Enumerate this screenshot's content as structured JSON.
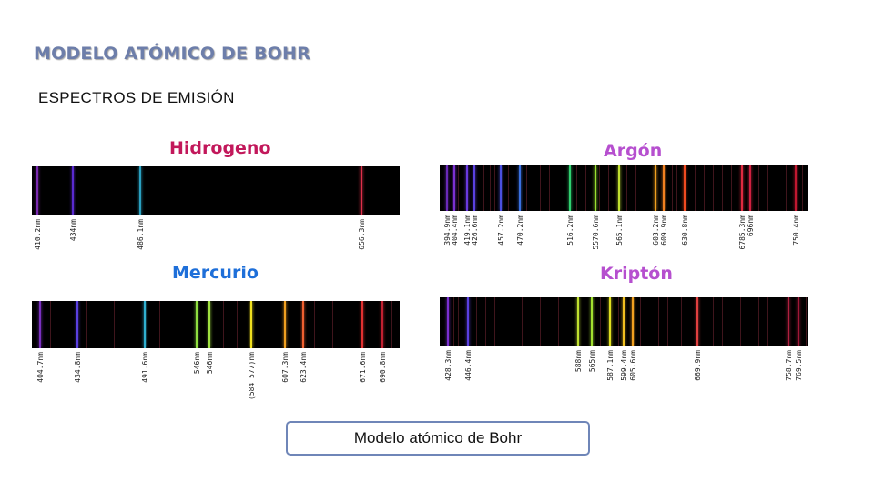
{
  "header": {
    "title": "MODELO ATÓMICO DE BOHR",
    "subtitle": "ESPECTROS DE EMISIÓN"
  },
  "panels": [
    {
      "name": "Hidrogeno",
      "color": "#c2185b",
      "lines": [
        {
          "label": "410.2nm",
          "color": "#7a2ab0"
        },
        {
          "label": "434nm",
          "color": "#5a2ad0"
        },
        {
          "label": "486.1nm",
          "color": "#2aa0c0"
        },
        {
          "label": "656.3nm",
          "color": "#e0304a"
        }
      ]
    },
    {
      "name": "Argón",
      "color": "#b64fcf",
      "lines": [
        {
          "label": "394.9nm",
          "color": "#6a2ab8"
        },
        {
          "label": "404.4nm",
          "color": "#7a30d0"
        },
        {
          "label": "419.1nm",
          "color": "#6a3ae0"
        },
        {
          "label": "426.6nm",
          "color": "#5a40e0"
        },
        {
          "label": "457.2nm",
          "color": "#4a50e0"
        },
        {
          "label": "470.2nm",
          "color": "#3a70e0"
        },
        {
          "label": "516.2nm",
          "color": "#30d070"
        },
        {
          "label": "5570.6nm",
          "color": "#9adf30"
        },
        {
          "label": "565.1nm",
          "color": "#c0e030"
        },
        {
          "label": "603.2nm",
          "color": "#f0a020"
        },
        {
          "label": "609.9nm",
          "color": "#f08020"
        },
        {
          "label": "630.8nm",
          "color": "#f04a20"
        },
        {
          "label": "6785.3nm",
          "color": "#e02a40"
        },
        {
          "label": "696nm",
          "color": "#d02040"
        },
        {
          "label": "750.4nm",
          "color": "#c01830"
        }
      ]
    },
    {
      "name": "Mercurio",
      "color": "#1e6fd9",
      "lines": [
        {
          "label": "404.7nm",
          "color": "#7a30c0"
        },
        {
          "label": "434.8nm",
          "color": "#5a40e0"
        },
        {
          "label": "491.6nm",
          "color": "#30b0d0"
        },
        {
          "label": "546nm",
          "color": "#90e040"
        },
        {
          "label": "546nm",
          "color": "#a0e040"
        },
        {
          "label": "(584 577)nm",
          "color": "#f0e020"
        },
        {
          "label": "607.3nm",
          "color": "#f0a020"
        },
        {
          "label": "623.4nm",
          "color": "#f06030"
        },
        {
          "label": "671.6nm",
          "color": "#e03030"
        },
        {
          "label": "690.8nm",
          "color": "#c02030"
        }
      ]
    },
    {
      "name": "Kriptón",
      "color": "#b64fcf",
      "lines": [
        {
          "label": "428.3nm",
          "color": "#7a30d0"
        },
        {
          "label": "446.4nm",
          "color": "#5a40e0"
        },
        {
          "label": "588nm",
          "color": "#c0e030"
        },
        {
          "label": "565nm",
          "color": "#a0e030"
        },
        {
          "label": "587.1nm",
          "color": "#e0e020"
        },
        {
          "label": "599.4nm",
          "color": "#f0c020"
        },
        {
          "label": "605.6nm",
          "color": "#f0a020"
        },
        {
          "label": "669.9nm",
          "color": "#e04040"
        },
        {
          "label": "758.7nm",
          "color": "#b02040"
        },
        {
          "label": "769.5nm",
          "color": "#a01838"
        }
      ]
    }
  ],
  "footer": {
    "button_label": "Modelo atómico de Bohr"
  }
}
